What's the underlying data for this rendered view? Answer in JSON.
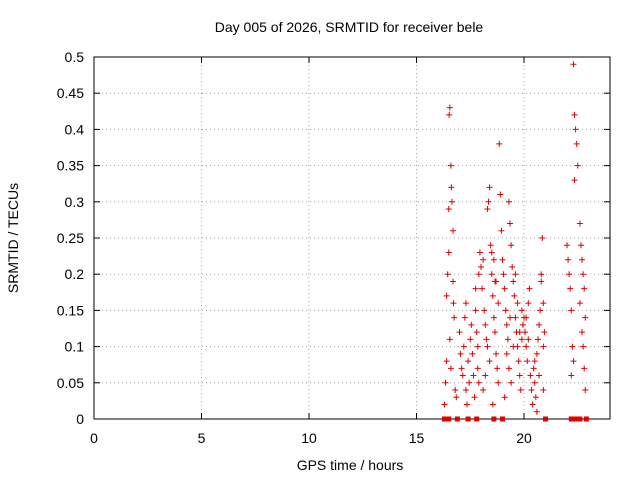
{
  "chart_data": {
    "type": "scatter",
    "title": "Day 005 of 2026, SRMTID for receiver bele",
    "xlabel": "GPS time / hours",
    "ylabel": "SRMTID / TECUs",
    "xlim": [
      0,
      24
    ],
    "ylim": [
      0,
      0.5
    ],
    "xticks": [
      0,
      5,
      10,
      15,
      20
    ],
    "xtick_labels": [
      "0",
      "5",
      "10",
      "15",
      "20"
    ],
    "yticks": [
      0,
      0.05,
      0.1,
      0.15,
      0.2,
      0.25,
      0.3,
      0.35,
      0.4,
      0.45,
      0.5
    ],
    "ytick_labels": [
      "0",
      "0.05",
      "0.1",
      "0.15",
      "0.2",
      "0.25",
      "0.3",
      "0.35",
      "0.4",
      "0.45",
      "0.5"
    ],
    "grid": true,
    "marker_color": "#e00000",
    "series": [
      {
        "name": "SRMTID",
        "marker": "plus",
        "points": [
          [
            16.3,
            0.02
          ],
          [
            16.35,
            0.05
          ],
          [
            16.4,
            0.08
          ],
          [
            16.4,
            0.17
          ],
          [
            16.45,
            0.2
          ],
          [
            16.5,
            0.23
          ],
          [
            16.5,
            0.29
          ],
          [
            16.52,
            0.42
          ],
          [
            16.55,
            0.43
          ],
          [
            16.6,
            0.35
          ],
          [
            16.62,
            0.32
          ],
          [
            16.65,
            0.3
          ],
          [
            16.7,
            0.26
          ],
          [
            16.7,
            0.19
          ],
          [
            16.72,
            0.16
          ],
          [
            16.75,
            0.14
          ],
          [
            16.55,
            0.11
          ],
          [
            16.6,
            0.07
          ],
          [
            16.8,
            0.04
          ],
          [
            16.85,
            0.03
          ],
          [
            17.0,
            0.12
          ],
          [
            17.05,
            0.09
          ],
          [
            17.1,
            0.07
          ],
          [
            17.15,
            0.06
          ],
          [
            17.2,
            0.1
          ],
          [
            17.25,
            0.14
          ],
          [
            17.3,
            0.04
          ],
          [
            17.3,
            0.16
          ],
          [
            17.35,
            0.02
          ],
          [
            17.4,
            0.08
          ],
          [
            17.45,
            0.05
          ],
          [
            17.5,
            0.11
          ],
          [
            17.55,
            0.13
          ],
          [
            17.6,
            0.09
          ],
          [
            17.65,
            0.06
          ],
          [
            17.7,
            0.03
          ],
          [
            17.75,
            0.15
          ],
          [
            17.8,
            0.12
          ],
          [
            17.85,
            0.1
          ],
          [
            17.9,
            0.2
          ],
          [
            17.95,
            0.23
          ],
          [
            17.85,
            0.07
          ],
          [
            17.9,
            0.05
          ],
          [
            17.75,
            0.18
          ],
          [
            18.0,
            0.21
          ],
          [
            18.05,
            0.18
          ],
          [
            18.1,
            0.22
          ],
          [
            18.15,
            0.15
          ],
          [
            18.2,
            0.13
          ],
          [
            18.25,
            0.11
          ],
          [
            18.3,
            0.29
          ],
          [
            18.35,
            0.3
          ],
          [
            18.4,
            0.32
          ],
          [
            18.45,
            0.24
          ],
          [
            18.5,
            0.2
          ],
          [
            18.55,
            0.17
          ],
          [
            18.6,
            0.14
          ],
          [
            18.65,
            0.12
          ],
          [
            18.7,
            0.09
          ],
          [
            18.75,
            0.07
          ],
          [
            18.8,
            0.05
          ],
          [
            18.85,
            0.38
          ],
          [
            18.9,
            0.31
          ],
          [
            18.95,
            0.26
          ],
          [
            18.5,
            0.23
          ],
          [
            18.6,
            0.22
          ],
          [
            18.7,
            0.19
          ],
          [
            18.8,
            0.16
          ],
          [
            18.3,
            0.1
          ],
          [
            18.4,
            0.08
          ],
          [
            18.2,
            0.06
          ],
          [
            18.1,
            0.04
          ],
          [
            18.55,
            0.02
          ],
          [
            18.65,
            0.19
          ],
          [
            19.0,
            0.22
          ],
          [
            19.05,
            0.2
          ],
          [
            19.1,
            0.18
          ],
          [
            19.15,
            0.15
          ],
          [
            19.2,
            0.13
          ],
          [
            19.25,
            0.11
          ],
          [
            19.3,
            0.3
          ],
          [
            19.35,
            0.27
          ],
          [
            19.4,
            0.24
          ],
          [
            19.45,
            0.21
          ],
          [
            19.5,
            0.19
          ],
          [
            19.55,
            0.17
          ],
          [
            19.6,
            0.14
          ],
          [
            19.65,
            0.12
          ],
          [
            19.7,
            0.1
          ],
          [
            19.75,
            0.08
          ],
          [
            19.8,
            0.06
          ],
          [
            19.85,
            0.04
          ],
          [
            19.9,
            0.15
          ],
          [
            19.95,
            0.13
          ],
          [
            19.2,
            0.09
          ],
          [
            19.3,
            0.07
          ],
          [
            19.4,
            0.05
          ],
          [
            19.5,
            0.1
          ],
          [
            19.6,
            0.2
          ],
          [
            19.7,
            0.16
          ],
          [
            19.8,
            0.12
          ],
          [
            19.9,
            0.11
          ],
          [
            19.1,
            0.03
          ],
          [
            19.35,
            0.14
          ],
          [
            20.0,
            0.14
          ],
          [
            20.05,
            0.12
          ],
          [
            20.1,
            0.1
          ],
          [
            20.15,
            0.08
          ],
          [
            20.2,
            0.16
          ],
          [
            20.25,
            0.18
          ],
          [
            20.3,
            0.06
          ],
          [
            20.35,
            0.04
          ],
          [
            20.4,
            0.02
          ],
          [
            20.45,
            0.07
          ],
          [
            20.5,
            0.05
          ],
          [
            20.55,
            0.03
          ],
          [
            20.6,
            0.09
          ],
          [
            20.65,
            0.11
          ],
          [
            20.7,
            0.13
          ],
          [
            20.75,
            0.15
          ],
          [
            20.8,
            0.2
          ],
          [
            20.85,
            0.25
          ],
          [
            20.9,
            0.16
          ],
          [
            20.95,
            0.12
          ],
          [
            20.1,
            0.14
          ],
          [
            20.2,
            0.11
          ],
          [
            20.6,
            0.01
          ],
          [
            20.8,
            0.19
          ],
          [
            20.9,
            0.1
          ],
          [
            20.5,
            0.08
          ],
          [
            20.7,
            0.06
          ],
          [
            20.9,
            0.04
          ],
          [
            22.0,
            0.24
          ],
          [
            22.05,
            0.22
          ],
          [
            22.1,
            0.2
          ],
          [
            22.15,
            0.18
          ],
          [
            22.2,
            0.15
          ],
          [
            22.25,
            0.1
          ],
          [
            22.3,
            0.08
          ],
          [
            22.35,
            0.42
          ],
          [
            22.4,
            0.4
          ],
          [
            22.45,
            0.38
          ],
          [
            22.5,
            0.35
          ],
          [
            22.3,
            0.49
          ],
          [
            22.35,
            0.33
          ],
          [
            22.2,
            0.06
          ],
          [
            22.6,
            0.27
          ],
          [
            22.65,
            0.24
          ],
          [
            22.7,
            0.22
          ],
          [
            22.75,
            0.2
          ],
          [
            22.8,
            0.18
          ],
          [
            22.85,
            0.14
          ],
          [
            22.7,
            0.12
          ],
          [
            22.75,
            0.1
          ],
          [
            22.8,
            0.07
          ],
          [
            22.85,
            0.04
          ],
          [
            22.6,
            0.16
          ]
        ]
      },
      {
        "name": "zero",
        "marker": "square",
        "points": [
          [
            16.3,
            0
          ],
          [
            16.5,
            0
          ],
          [
            16.9,
            0
          ],
          [
            17.4,
            0
          ],
          [
            17.8,
            0
          ],
          [
            18.6,
            0
          ],
          [
            19.0,
            0
          ],
          [
            21.0,
            0
          ],
          [
            22.2,
            0
          ],
          [
            22.4,
            0
          ],
          [
            22.6,
            0
          ],
          [
            22.9,
            0
          ]
        ]
      }
    ]
  }
}
